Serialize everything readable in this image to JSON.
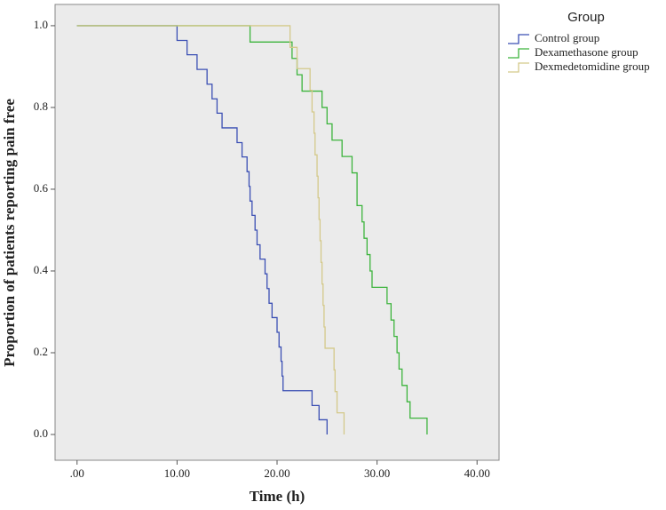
{
  "chart_data": {
    "type": "line",
    "step": "post",
    "x_label": "Time  (h)",
    "y_label": "Proportion of patients reporting pain free",
    "legend_title": "Group",
    "legend_position": "right",
    "xlim": [
      -2.2,
      42.2
    ],
    "ylim": [
      -0.063,
      1.052
    ],
    "xticks": [
      {
        "value": 0,
        "label": ".00"
      },
      {
        "value": 10,
        "label": "10.00"
      },
      {
        "value": 20,
        "label": "20.00"
      },
      {
        "value": 30,
        "label": "30.00"
      },
      {
        "value": 40,
        "label": "40.00"
      }
    ],
    "yticks": [
      {
        "value": 0,
        "label": "0.0"
      },
      0.2,
      0.4,
      0.6,
      0.8,
      {
        "value": 1,
        "label": "1.0"
      }
    ],
    "series": [
      {
        "name": "Control group",
        "color": "#3b4fb4",
        "x": [
          0,
          10,
          11,
          12,
          13,
          13.5,
          14,
          14.5,
          16,
          16.5,
          17,
          17.2,
          17.3,
          17.5,
          17.8,
          18,
          18.3,
          18.8,
          19,
          19.2,
          19.5,
          20,
          20.2,
          20.4,
          20.5,
          20.6,
          23.5,
          24.2,
          25
        ],
        "values": [
          1,
          0.964,
          0.929,
          0.893,
          0.857,
          0.821,
          0.786,
          0.75,
          0.714,
          0.679,
          0.643,
          0.607,
          0.571,
          0.536,
          0.5,
          0.464,
          0.429,
          0.393,
          0.357,
          0.321,
          0.286,
          0.25,
          0.214,
          0.179,
          0.143,
          0.107,
          0.071,
          0.036,
          0
        ]
      },
      {
        "name": "Dexamethasone group",
        "color": "#3cb43c",
        "x": [
          0,
          17.3,
          21.5,
          22,
          22.5,
          24.5,
          25,
          25.5,
          26.5,
          27.5,
          28,
          28.5,
          28.7,
          29,
          29.3,
          29.5,
          31,
          31.4,
          31.7,
          32,
          32.2,
          32.5,
          33,
          33.3,
          35
        ],
        "values": [
          1,
          0.96,
          0.92,
          0.88,
          0.84,
          0.8,
          0.76,
          0.72,
          0.68,
          0.64,
          0.56,
          0.52,
          0.48,
          0.44,
          0.4,
          0.36,
          0.32,
          0.28,
          0.24,
          0.2,
          0.16,
          0.12,
          0.08,
          0.04,
          0
        ]
      },
      {
        "name": "Dexmedetomidine group",
        "color": "#d4c98a",
        "x": [
          0,
          21.3,
          22,
          23.3,
          23.5,
          23.7,
          23.8,
          24,
          24.1,
          24.2,
          24.3,
          24.4,
          24.5,
          24.6,
          24.7,
          24.8,
          25.7,
          25.8,
          26,
          26.7
        ],
        "values": [
          1,
          0.947,
          0.895,
          0.842,
          0.789,
          0.737,
          0.684,
          0.632,
          0.579,
          0.526,
          0.474,
          0.421,
          0.368,
          0.316,
          0.263,
          0.211,
          0.158,
          0.105,
          0.053,
          0
        ]
      }
    ]
  }
}
